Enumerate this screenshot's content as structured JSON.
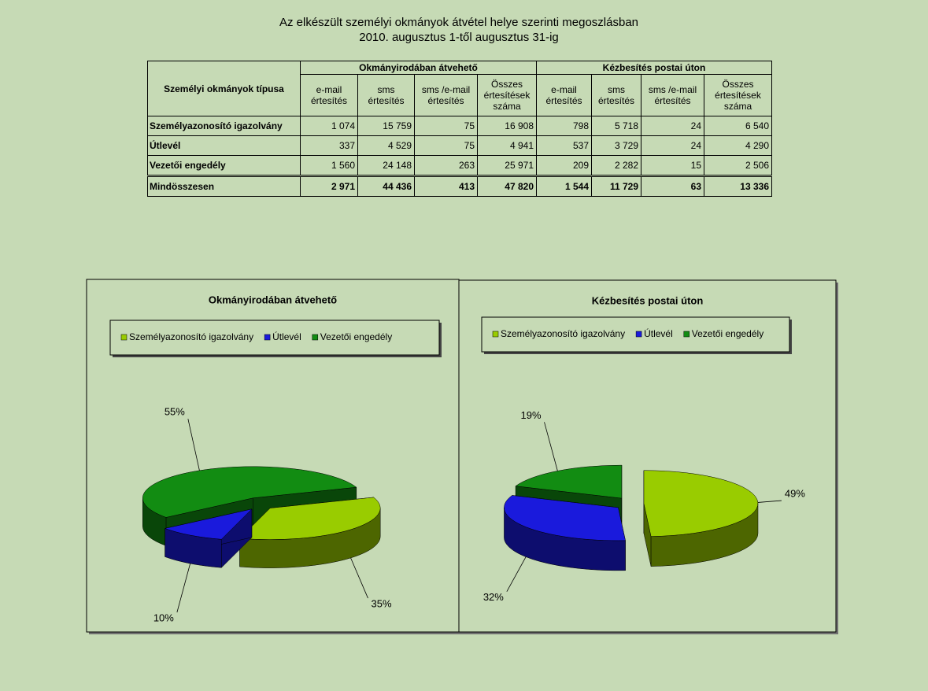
{
  "title": "Az elkészült személyi okmányok átvétel helye szerinti megoszlásban",
  "subtitle": "2010. augusztus 1-től augusztus 31-ig",
  "table": {
    "corner": "Személyi okmányok típusa",
    "groups": [
      {
        "name": "Okmányirodában átvehető",
        "columns": [
          "e-mail értesítés",
          "sms értesítés",
          "sms /e-mail értesítés",
          "Összes értesítések száma"
        ]
      },
      {
        "name": "Kézbesítés postai úton",
        "columns": [
          "e-mail értesítés",
          "sms értesítés",
          "sms /e-mail értesítés",
          "Összes értesítések száma"
        ]
      }
    ],
    "rows": [
      [
        "Személyazonosító igazolvány",
        "1 074",
        "15 759",
        "75",
        "16 908",
        "798",
        "5 718",
        "24",
        "6 540"
      ],
      [
        "Útlevél",
        "337",
        "4 529",
        "75",
        "4 941",
        "537",
        "3 729",
        "24",
        "4 290"
      ],
      [
        "Vezetői engedély",
        "1 560",
        "24 148",
        "263",
        "25 971",
        "209",
        "2 282",
        "15",
        "2 506"
      ]
    ],
    "total": [
      "Mindösszesen",
      "2 971",
      "44 436",
      "413",
      "47 820",
      "1 544",
      "11 729",
      "63",
      "13 336"
    ]
  },
  "chart_data": [
    {
      "type": "pie",
      "title": "Okmányirodában átvehető",
      "categories": [
        "Személyazonosító igazolvány",
        "Útlevél",
        "Vezetői engedély"
      ],
      "values": [
        35,
        10,
        55
      ],
      "value_labels": [
        "35%",
        "10%",
        "55%"
      ],
      "colors": [
        "#99cc00",
        "#1a1adc",
        "#128c12"
      ],
      "legend": "top"
    },
    {
      "type": "pie",
      "title": "Kézbesítés postai úton",
      "categories": [
        "Személyazonosító igazolvány",
        "Útlevél",
        "Vezetői engedély"
      ],
      "values": [
        49,
        32,
        19
      ],
      "value_labels": [
        "49%",
        "32%",
        "19%"
      ],
      "colors": [
        "#99cc00",
        "#1a1adc",
        "#128c12"
      ],
      "legend": "top"
    }
  ]
}
